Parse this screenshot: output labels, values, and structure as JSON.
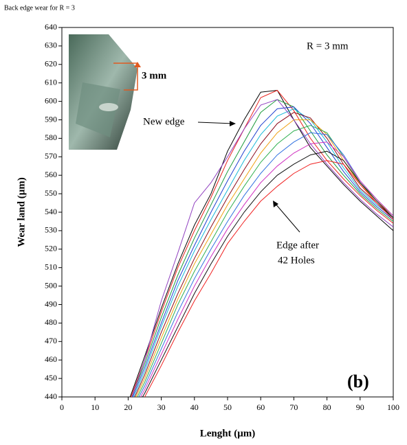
{
  "chart_data": {
    "type": "line",
    "title": "Back edge wear for R = 3",
    "x_label": "Lenght (μm)",
    "y_label": "Wear land (μm)",
    "annotations": [
      "R = 3 mm",
      "3 mm",
      "New edge",
      "Edge after",
      "42 Holes",
      "(b)"
    ],
    "x": [
      20,
      25,
      30,
      35,
      40,
      45,
      50,
      55,
      60,
      65,
      70,
      75,
      80,
      85,
      90,
      95,
      100
    ],
    "xlim": [
      0,
      100
    ],
    "xticks": [
      0,
      10,
      20,
      30,
      40,
      50,
      60,
      70,
      80,
      90,
      100
    ],
    "ylim": [
      440,
      640
    ],
    "yticks": [
      440,
      450,
      460,
      470,
      480,
      490,
      500,
      510,
      520,
      530,
      540,
      550,
      560,
      570,
      580,
      590,
      600,
      610,
      620,
      630,
      640
    ],
    "grid": false,
    "series": [
      {
        "color": "#000000",
        "values": [
          437,
          462,
          488,
          512,
          533,
          550,
          573,
          590,
          605,
          606,
          590,
          575,
          565,
          555,
          546,
          538,
          530
        ]
      },
      {
        "color": "#e8211c",
        "values": [
          436,
          460,
          486,
          510,
          530,
          548,
          568,
          585,
          602,
          606,
          595,
          580,
          568,
          558,
          549,
          541,
          534
        ]
      },
      {
        "color": "#1a9a3a",
        "values": [
          435,
          458,
          483,
          506,
          526,
          544,
          562,
          578,
          594,
          601,
          597,
          584,
          571,
          560,
          550,
          542,
          535
        ]
      },
      {
        "color": "#2040d0",
        "values": [
          434,
          456,
          480,
          503,
          522,
          540,
          557,
          573,
          587,
          596,
          597,
          588,
          575,
          562,
          551,
          543,
          536
        ]
      },
      {
        "color": "#18b8d8",
        "values": [
          433,
          454,
          478,
          500,
          519,
          536,
          552,
          568,
          582,
          592,
          596,
          590,
          578,
          564,
          552,
          544,
          537
        ]
      },
      {
        "color": "#8b0a1a",
        "values": [
          432,
          452,
          475,
          496,
          515,
          532,
          548,
          563,
          577,
          588,
          594,
          591,
          580,
          566,
          553,
          545,
          537
        ]
      },
      {
        "color": "#f0a010",
        "values": [
          431,
          450,
          472,
          493,
          512,
          528,
          544,
          558,
          572,
          583,
          590,
          590,
          582,
          568,
          555,
          546,
          538
        ]
      },
      {
        "color": "#30b050",
        "values": [
          430,
          448,
          469,
          490,
          508,
          524,
          540,
          554,
          567,
          577,
          584,
          587,
          583,
          570,
          556,
          547,
          538
        ]
      },
      {
        "color": "#3070e0",
        "values": [
          429,
          446,
          466,
          486,
          504,
          520,
          535,
          549,
          561,
          571,
          578,
          583,
          582,
          571,
          557,
          547,
          538
        ]
      },
      {
        "color": "#d030c0",
        "values": [
          428,
          444,
          463,
          482,
          500,
          516,
          531,
          544,
          556,
          565,
          572,
          577,
          578,
          570,
          557,
          547,
          538
        ]
      },
      {
        "color": "#111111",
        "values": [
          427,
          442,
          460,
          478,
          496,
          512,
          527,
          540,
          551,
          560,
          566,
          571,
          573,
          568,
          556,
          546,
          537
        ]
      },
      {
        "color": "#f02020",
        "values": [
          426,
          440,
          457,
          475,
          492,
          507,
          523,
          535,
          546,
          554,
          561,
          566,
          568,
          566,
          555,
          545,
          536
        ]
      },
      {
        "color": "#9040c0",
        "values": [
          434,
          460,
          492,
          518,
          545,
          556,
          570,
          585,
          598,
          601,
          590,
          577,
          566,
          556,
          547,
          539,
          532
        ]
      }
    ]
  }
}
